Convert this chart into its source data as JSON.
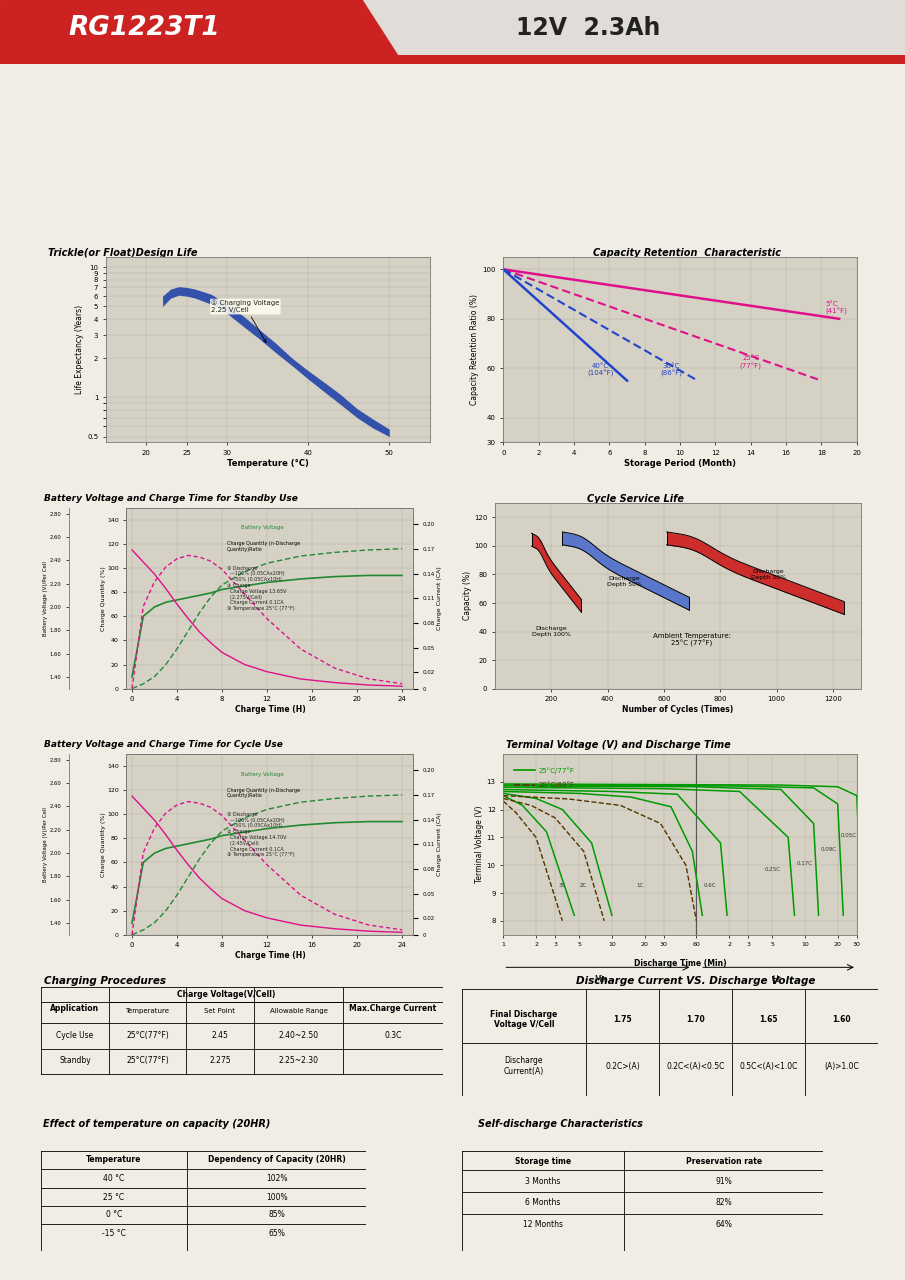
{
  "title_model": "RG1223T1",
  "title_spec": "12V  2.3Ah",
  "bg_color": "#f0ede5",
  "panel_bg": "#e8e5dc",
  "chart_bg": "#d5d2c5",
  "header_red": "#cc2222",
  "section1_title": "Trickle(or Float)Design Life",
  "trickle_xlabel": "Temperature (°C)",
  "trickle_ylabel": "Life Expectancy (Years)",
  "trickle_annotation": "① Charging Voltage\n2.25 V/Cell",
  "section2_title": "Capacity Retention  Characteristic",
  "cap_ret_xlabel": "Storage Period (Month)",
  "cap_ret_ylabel": "Capacity Retention Ratio (%)",
  "section3_title": "Battery Voltage and Charge Time for Standby Use",
  "standby_xlabel": "Charge Time (H)",
  "section4_title": "Cycle Service Life",
  "cycle_service_xlabel": "Number of Cycles (Times)",
  "cycle_service_ylabel": "Capacity (%)",
  "section5_title": "Battery Voltage and Charge Time for Cycle Use",
  "cycle_use_xlabel": "Charge Time (H)",
  "section6_title": "Terminal Voltage (V) and Discharge Time",
  "discharge_xlabel": "Discharge Time (Min)",
  "discharge_ylabel": "Terminal Voltage (V)",
  "section7_title": "Charging Procedures",
  "section8_title": "Discharge Current VS. Discharge Voltage",
  "section9_title": "Effect of temperature on capacity (20HR)",
  "section10_title": "Self-discharge Characteristics",
  "charge_table_rows": [
    [
      "Cycle Use",
      "25°C(77°F)",
      "2.45",
      "2.40~2.50",
      "0.3C"
    ],
    [
      "Standby",
      "25°C(77°F)",
      "2.275",
      "2.25~2.30",
      ""
    ]
  ],
  "discharge_vs_table_headers": [
    "Final Discharge\nVoltage V/Cell",
    "1.75",
    "1.70",
    "1.65",
    "1.60"
  ],
  "discharge_vs_table_rows": [
    [
      "Discharge\nCurrent(A)",
      "0.2C>(A)",
      "0.2C<(A)<0.5C",
      "0.5C<(A)<1.0C",
      "(A)>1.0C"
    ]
  ],
  "temp_table_rows": [
    [
      "40 °C",
      "102%"
    ],
    [
      "25 °C",
      "100%"
    ],
    [
      "0 °C",
      "85%"
    ],
    [
      "-15 °C",
      "65%"
    ]
  ],
  "self_discharge_rows": [
    [
      "3 Months",
      "91%"
    ],
    [
      "6 Months",
      "82%"
    ],
    [
      "12 Months",
      "64%"
    ]
  ]
}
